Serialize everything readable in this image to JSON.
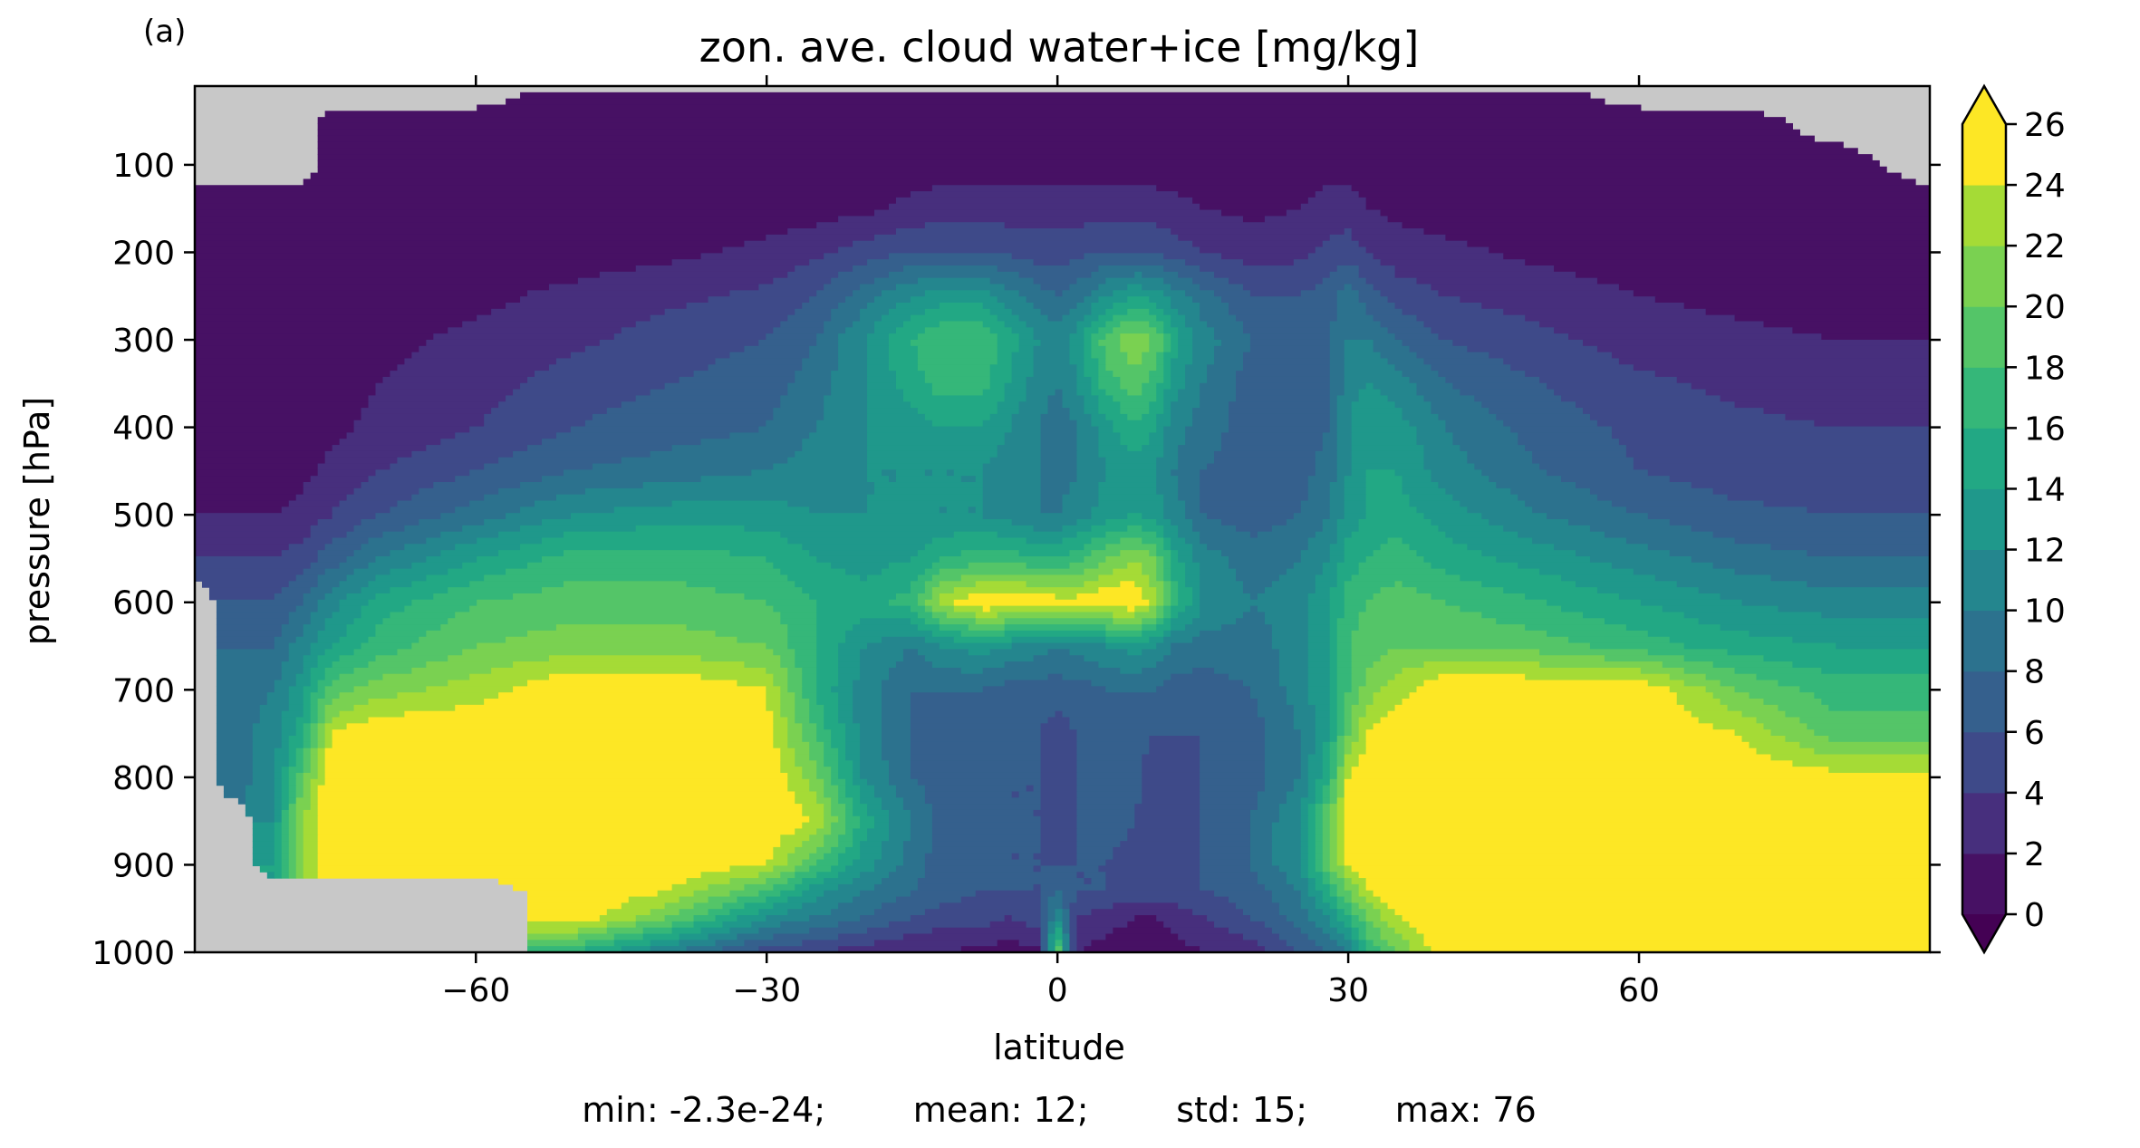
{
  "panel_label": "(a)",
  "stats": "min: -2.3e-24;        mean: 12;        std: 15;        max: 76",
  "chart_data": {
    "type": "heatmap",
    "subtype": "filled-contour",
    "title": "zon. ave. cloud water+ice [mg/kg]",
    "xlabel": "latitude",
    "ylabel": "pressure [hPa]",
    "xlim": [
      -89,
      90
    ],
    "ylim": [
      1000,
      10
    ],
    "y_inverted": true,
    "x_ticks": [
      -60,
      -30,
      0,
      30,
      60
    ],
    "x_tick_labels": [
      "−60",
      "−30",
      "0",
      "30",
      "60"
    ],
    "y_ticks": [
      100,
      200,
      300,
      400,
      500,
      600,
      700,
      800,
      900,
      1000
    ],
    "y_tick_labels": [
      "100",
      "200",
      "300",
      "400",
      "500",
      "600",
      "700",
      "800",
      "900",
      "1000"
    ],
    "missing_color": "#c8c8c8",
    "colorbar": {
      "levels": [
        0,
        2,
        4,
        6,
        8,
        10,
        12,
        14,
        16,
        18,
        20,
        22,
        24,
        26
      ],
      "tick_labels": [
        "0",
        "2",
        "4",
        "6",
        "8",
        "10",
        "12",
        "14",
        "16",
        "18",
        "20",
        "22",
        "24",
        "26"
      ],
      "colors": [
        "#471164",
        "#472f7d",
        "#3e4a89",
        "#35608d",
        "#2c728e",
        "#24868e",
        "#1f988b",
        "#22a884",
        "#35b779",
        "#54c568",
        "#7ad151",
        "#a5db36",
        "#fde725"
      ],
      "under_color": "#440154",
      "over_color": "#fde725",
      "extend": "both",
      "placement": "right"
    },
    "lat_grid": [
      -89,
      -85,
      -81,
      -78,
      -75,
      -70,
      -60,
      -50,
      -40,
      -30,
      -25,
      -20,
      -15,
      -12,
      -8,
      -5,
      -2,
      0,
      2,
      5,
      8,
      10,
      12,
      15,
      20,
      25,
      28,
      30,
      32,
      35,
      40,
      50,
      60,
      70,
      80,
      90
    ],
    "pressure_grid": [
      10,
      20,
      50,
      100,
      150,
      200,
      250,
      300,
      350,
      400,
      450,
      500,
      550,
      600,
      650,
      700,
      750,
      800,
      850,
      900,
      930,
      960,
      1000
    ],
    "values": [
      [
        null,
        null,
        null,
        null,
        null,
        null,
        null,
        null,
        null,
        null,
        null,
        null,
        null,
        null,
        null,
        null,
        null,
        null,
        null,
        null,
        null,
        null,
        null,
        null,
        null,
        null,
        null,
        null,
        null,
        null,
        null,
        null,
        null,
        null,
        null,
        null
      ],
      [
        null,
        null,
        null,
        null,
        null,
        null,
        null,
        1,
        1,
        1,
        1,
        1,
        1,
        1,
        1,
        1,
        1,
        1,
        1,
        1,
        1,
        1,
        1,
        1,
        1,
        1,
        1,
        1,
        1,
        1,
        1,
        1,
        null,
        null,
        null,
        null
      ],
      [
        null,
        null,
        null,
        null,
        1,
        1,
        1,
        1,
        1,
        1,
        1,
        1,
        1,
        1,
        1,
        1,
        1,
        1,
        1,
        1,
        1,
        1,
        1,
        1,
        1,
        1,
        1,
        1,
        1,
        1,
        1,
        1,
        1,
        1,
        null,
        null
      ],
      [
        null,
        null,
        null,
        null,
        1,
        1,
        1,
        1,
        1,
        1,
        1,
        1,
        1,
        1,
        1,
        1,
        1,
        1,
        1,
        1,
        1,
        1,
        1,
        1,
        1,
        1,
        1,
        1,
        1,
        1,
        1,
        1,
        1,
        1,
        1,
        null
      ],
      [
        1,
        1,
        1,
        1,
        1,
        1,
        1,
        1,
        1,
        1,
        1,
        1.5,
        2.5,
        3,
        3,
        3,
        3,
        3,
        3,
        3,
        3,
        3,
        2.5,
        2,
        1.5,
        2,
        3,
        3,
        2,
        1.5,
        1,
        1,
        1,
        1,
        1,
        1
      ],
      [
        1,
        1,
        1,
        1,
        1,
        1,
        1,
        1,
        1.5,
        2.5,
        3.5,
        5,
        6,
        6,
        6,
        5.5,
        5,
        5,
        5.5,
        6,
        6,
        6,
        5,
        4,
        3,
        3.5,
        4.5,
        5,
        4,
        3,
        2.5,
        1.5,
        1,
        1,
        1,
        1
      ],
      [
        1,
        1,
        1,
        1,
        1,
        1,
        1.5,
        2.5,
        3.5,
        4.5,
        6,
        9,
        12,
        13,
        13,
        11,
        9,
        8,
        9,
        12,
        14,
        13,
        11,
        9,
        6,
        6,
        7,
        9,
        7,
        5,
        4,
        3,
        2,
        1.5,
        1,
        1
      ],
      [
        1,
        1,
        1,
        1,
        1,
        1.5,
        2.5,
        3.5,
        5,
        6,
        8,
        12,
        16,
        18,
        18,
        15,
        12,
        11,
        13,
        19,
        22,
        20,
        15,
        11,
        8,
        7,
        8,
        10,
        10,
        8,
        6,
        4.5,
        3,
        2.5,
        2,
        2
      ],
      [
        1,
        1,
        1,
        1,
        1,
        2,
        3,
        5,
        6,
        7,
        9,
        12,
        15,
        17,
        17,
        14,
        11,
        10,
        12,
        17,
        19,
        17,
        13,
        10,
        7,
        7,
        8,
        11,
        12,
        11,
        8,
        6,
        4.5,
        3.5,
        3,
        3
      ],
      [
        1,
        1,
        1,
        1,
        1.5,
        2.5,
        4,
        6,
        7,
        8,
        10,
        12,
        13,
        14,
        14,
        12,
        10,
        9,
        10,
        13,
        16,
        14,
        11,
        9,
        7,
        7,
        8,
        12,
        14,
        13,
        10,
        7,
        5.5,
        4.5,
        4,
        4
      ],
      [
        1,
        1,
        1,
        1.5,
        2.5,
        4,
        6,
        8,
        9,
        10,
        11,
        12,
        12,
        12,
        12,
        11,
        10,
        9,
        10,
        12,
        13,
        12,
        10,
        8,
        7,
        7,
        9,
        12,
        14,
        14,
        11,
        8,
        6,
        5,
        5,
        5
      ],
      [
        2,
        2,
        2,
        2.5,
        4,
        6,
        9,
        12,
        13,
        13,
        12,
        12,
        12,
        12,
        12,
        11,
        10,
        10,
        11,
        13,
        14,
        13,
        11,
        8,
        7,
        8,
        10,
        13,
        14,
        15,
        13,
        10,
        8,
        6.5,
        6,
        6
      ],
      [
        4,
        4,
        4,
        5,
        7,
        10,
        14,
        17,
        17,
        16,
        14,
        13,
        14,
        16,
        17,
        17,
        16,
        16,
        17,
        20,
        22,
        20,
        15,
        11,
        9,
        10,
        12,
        15,
        16,
        17,
        15,
        13,
        11,
        9,
        8,
        8
      ],
      [
        null,
        6,
        6,
        8,
        11,
        15,
        18,
        19,
        19,
        18,
        16,
        15,
        17,
        23,
        26,
        26,
        26,
        25,
        25,
        26,
        26,
        23,
        17,
        12,
        10,
        11,
        14,
        17,
        18,
        19,
        18,
        16,
        14,
        12,
        11,
        11
      ],
      [
        null,
        8,
        8,
        11,
        14,
        17,
        20,
        21,
        21,
        20,
        16,
        12,
        10,
        12,
        13,
        12,
        11,
        10,
        11,
        12,
        13,
        12,
        10,
        9,
        9,
        11,
        14,
        18,
        19,
        20,
        20,
        19,
        17,
        15,
        14,
        14
      ],
      [
        null,
        9,
        10,
        13,
        19,
        21,
        23,
        26,
        26,
        24,
        16,
        11,
        8,
        8,
        8,
        7,
        7,
        7,
        7,
        8,
        8,
        8,
        7,
        7,
        8,
        11,
        14,
        18,
        21,
        23,
        26,
        26,
        26,
        20,
        17,
        17
      ],
      [
        null,
        9,
        11,
        15,
        24,
        26,
        26,
        26,
        26,
        25,
        18,
        11,
        8,
        7,
        7,
        6,
        6,
        5,
        6,
        7,
        7,
        6,
        6,
        6,
        7,
        10,
        14,
        20,
        24,
        26,
        26,
        26,
        26,
        24,
        19,
        19
      ],
      [
        null,
        9,
        11,
        19,
        26,
        26,
        26,
        26,
        26,
        26,
        21,
        12,
        8,
        7,
        7,
        6,
        6,
        4,
        6,
        7,
        7,
        4,
        4,
        6,
        7,
        10,
        16,
        24,
        26,
        26,
        26,
        26,
        26,
        26,
        25,
        25
      ],
      [
        null,
        null,
        12,
        22,
        26,
        26,
        26,
        26,
        26,
        26,
        24,
        15,
        10,
        7,
        7,
        6,
        6,
        5,
        6,
        7,
        6,
        4,
        5,
        6,
        8,
        12,
        20,
        26,
        26,
        26,
        26,
        26,
        26,
        26,
        26,
        26
      ],
      [
        null,
        null,
        14,
        22,
        26,
        26,
        26,
        26,
        26,
        24,
        18,
        13,
        9,
        7,
        7,
        6,
        6,
        6,
        6,
        6,
        5,
        5,
        5,
        6,
        8,
        12,
        20,
        24,
        26,
        26,
        26,
        26,
        26,
        26,
        26,
        26
      ],
      [
        null,
        null,
        null,
        null,
        null,
        null,
        null,
        26,
        24,
        18,
        13,
        10,
        8,
        7,
        6,
        6,
        6,
        8,
        6,
        6,
        5,
        5,
        5,
        6,
        7,
        10,
        16,
        20,
        24,
        26,
        26,
        26,
        26,
        26,
        26,
        26
      ],
      [
        null,
        null,
        null,
        null,
        null,
        null,
        null,
        26,
        20,
        12,
        10,
        8,
        6,
        5,
        5,
        4,
        5,
        12,
        4,
        3,
        2,
        2,
        3,
        4,
        6,
        9,
        12,
        16,
        20,
        24,
        26,
        26,
        26,
        26,
        26,
        26
      ],
      [
        null,
        null,
        null,
        null,
        null,
        null,
        null,
        16,
        10,
        5,
        4,
        3,
        2,
        2,
        1.5,
        1,
        1.5,
        20,
        2,
        1,
        0.5,
        0.5,
        1,
        2,
        3,
        6,
        8,
        10,
        16,
        20,
        26,
        26,
        26,
        26,
        26,
        26
      ]
    ]
  }
}
